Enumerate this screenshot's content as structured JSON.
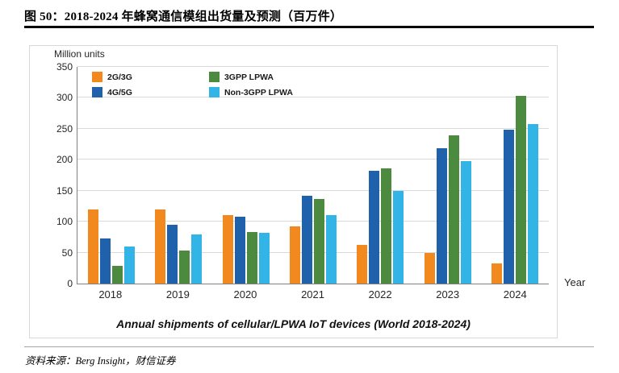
{
  "header": {
    "title": "图 50：2018-2024 年蜂窝通信模组出货量及预测（百万件）"
  },
  "chart_data": {
    "type": "bar",
    "title": "Annual shipments of cellular/LPWA IoT devices (World 2018-2024)",
    "y_axis_label": "Million units",
    "x_axis_label": "Year",
    "ylim": [
      0,
      350
    ],
    "ytick_step": 50,
    "grid": true,
    "legend_position": "top-left-inside",
    "categories": [
      "2018",
      "2019",
      "2020",
      "2021",
      "2022",
      "2023",
      "2024"
    ],
    "series": [
      {
        "name": "2G/3G",
        "color": "#F2891F",
        "values": [
          120,
          120,
          110,
          93,
          63,
          50,
          33
        ]
      },
      {
        "name": "4G/5G",
        "color": "#1F62AB",
        "values": [
          73,
          95,
          108,
          142,
          182,
          218,
          248
        ]
      },
      {
        "name": "3GPP LPWA",
        "color": "#4C8B3F",
        "values": [
          28,
          53,
          83,
          136,
          186,
          240,
          303
        ]
      },
      {
        "name": "Non-3GPP LPWA",
        "color": "#33B4E6",
        "values": [
          60,
          80,
          82,
          110,
          150,
          198,
          257
        ]
      }
    ]
  },
  "footer": {
    "source": "资料来源：Berg Insight，财信证券"
  }
}
